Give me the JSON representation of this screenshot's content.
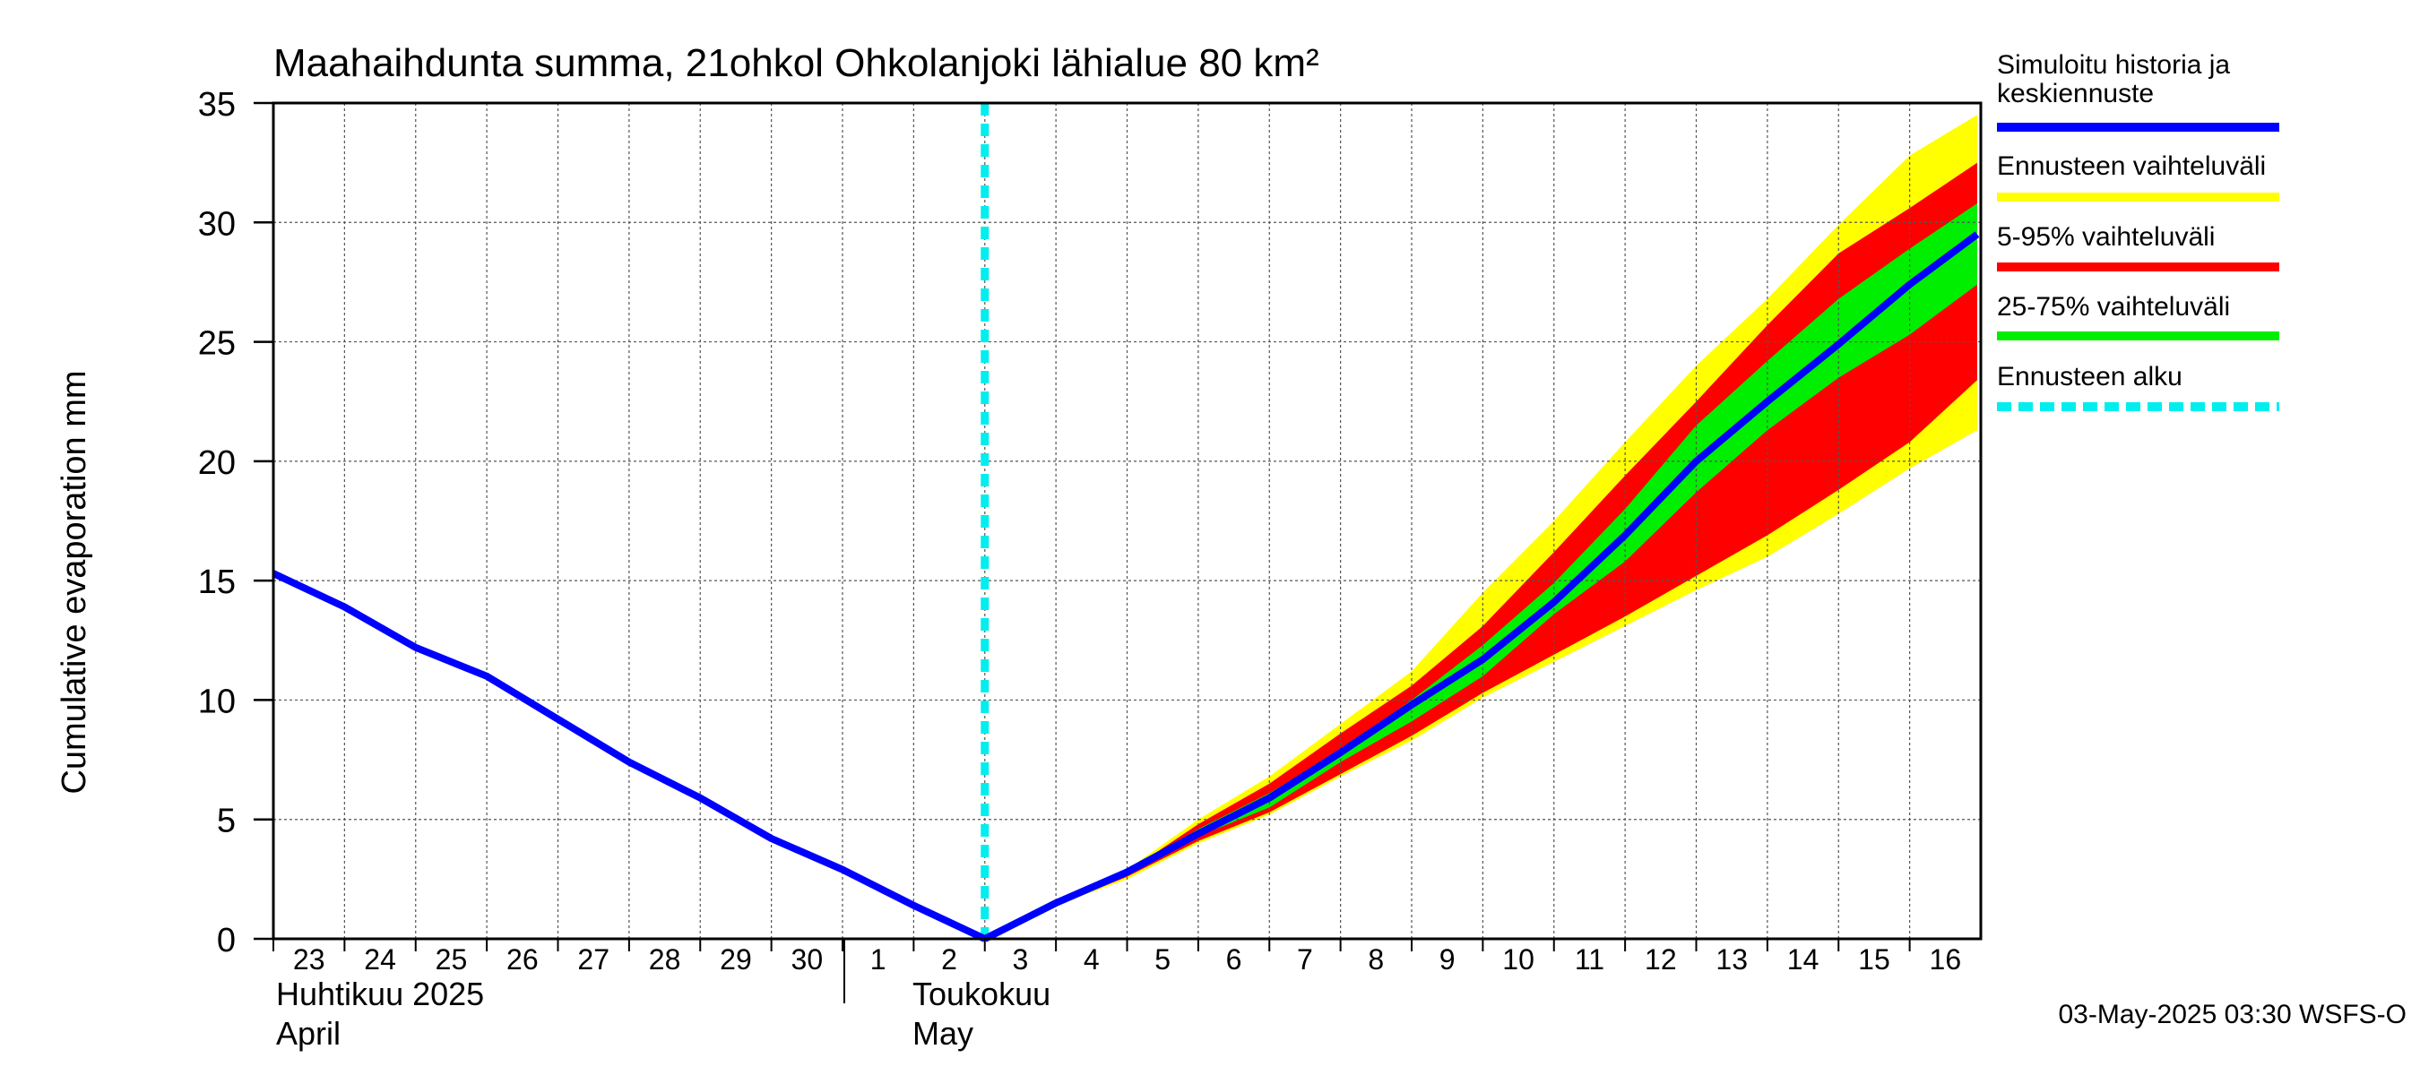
{
  "chart_data": {
    "type": "area",
    "title": "Maahaihdunta summa, 21ohkol Ohkolanjoki lähialue 80 km²",
    "ylabel": "Cumulative evaporation   mm",
    "xlabel": "",
    "ylim": [
      0,
      35
    ],
    "yticks": [
      0,
      5,
      10,
      15,
      20,
      25,
      30,
      35
    ],
    "grid": true,
    "x_tick_labels": [
      "23",
      "24",
      "25",
      "26",
      "27",
      "28",
      "29",
      "30",
      "1",
      "2",
      "3",
      "4",
      "5",
      "6",
      "7",
      "8",
      "9",
      "10",
      "11",
      "12",
      "13",
      "14",
      "15",
      "16"
    ],
    "month_labels": [
      {
        "fi": "Huhtikuu  2025",
        "en": "April"
      },
      {
        "fi": "Toukokuu",
        "en": "May"
      }
    ],
    "forecast_start_day": 10,
    "history": {
      "name": "Simuloitu historia ja keskiennuste",
      "x": [
        0,
        1,
        2,
        3,
        4,
        5,
        6,
        7,
        8,
        9,
        10
      ],
      "values": [
        15.3,
        13.9,
        12.2,
        11.0,
        9.2,
        7.4,
        5.9,
        4.2,
        2.9,
        1.4,
        0.0
      ]
    },
    "forecast_x": [
      10,
      11,
      12,
      13,
      14,
      15,
      16,
      17,
      18,
      19,
      20,
      21,
      22,
      23,
      23.95
    ],
    "series": [
      {
        "name": "Ennusteen vaihteluväli",
        "color": "#ffff00",
        "upper": [
          0.0,
          1.5,
          2.9,
          5.0,
          6.8,
          9.0,
          11.2,
          14.5,
          17.5,
          20.8,
          24.0,
          26.8,
          29.9,
          32.8,
          34.5
        ],
        "lower": [
          0.0,
          1.4,
          2.5,
          4.0,
          5.2,
          6.8,
          8.3,
          10.1,
          11.6,
          13.1,
          14.6,
          16.0,
          17.8,
          19.7,
          21.3
        ]
      },
      {
        "name": "5-95% vaihteluväli",
        "color": "#ff0000",
        "upper": [
          0.0,
          1.5,
          2.8,
          4.8,
          6.5,
          8.6,
          10.6,
          13.1,
          16.2,
          19.4,
          22.5,
          25.7,
          28.7,
          30.6,
          32.5
        ],
        "lower": [
          0.0,
          1.4,
          2.6,
          4.1,
          5.3,
          6.9,
          8.5,
          10.3,
          11.9,
          13.5,
          15.2,
          16.9,
          18.8,
          20.8,
          23.4
        ]
      },
      {
        "name": "25-75% vaihteluväli",
        "color": "#00ee00",
        "upper": [
          0.0,
          1.5,
          2.8,
          4.6,
          6.1,
          7.9,
          10.0,
          12.3,
          14.9,
          18.0,
          21.5,
          24.2,
          26.8,
          28.9,
          30.8
        ],
        "lower": [
          0.0,
          1.5,
          2.7,
          4.3,
          5.5,
          7.4,
          9.1,
          11.0,
          13.6,
          15.8,
          18.7,
          21.3,
          23.5,
          25.3,
          27.4
        ]
      },
      {
        "name": "Simuloitu historia ja keskiennuste",
        "color": "#0000ff",
        "values": [
          0.0,
          1.5,
          2.8,
          4.4,
          5.9,
          7.8,
          9.8,
          11.7,
          14.1,
          16.9,
          20.0,
          22.5,
          24.9,
          27.4,
          29.5
        ]
      }
    ],
    "legend": [
      {
        "label": "Simuloitu historia ja keskiennuste",
        "color": "#0000ff",
        "style": "solid"
      },
      {
        "label": "Ennusteen vaihteluväli",
        "color": "#ffff00",
        "style": "solid"
      },
      {
        "label": "5-95% vaihteluväli",
        "color": "#ff0000",
        "style": "solid"
      },
      {
        "label": "25-75% vaihteluväli",
        "color": "#00ee00",
        "style": "solid"
      },
      {
        "label": "Ennusteen alku",
        "color": "#00eeee",
        "style": "dashed"
      }
    ],
    "legend_position": "right",
    "footer": "03-May-2025 03:30 WSFS-O"
  }
}
